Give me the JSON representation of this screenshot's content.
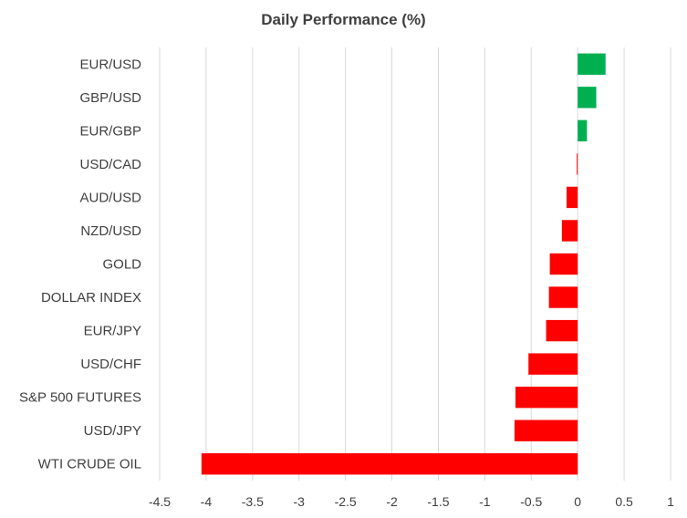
{
  "chart_data": {
    "type": "bar",
    "orientation": "horizontal",
    "title": "Daily Performance (%)",
    "xlabel": "",
    "ylabel": "",
    "categories": [
      "EUR/USD",
      "GBP/USD",
      "EUR/GBP",
      "USD/CAD",
      "AUD/USD",
      "NZD/USD",
      "GOLD",
      "DOLLAR INDEX",
      "EUR/JPY",
      "USD/CHF",
      "S&P 500 FUTURES",
      "USD/JPY",
      "WTI CRUDE OIL"
    ],
    "values": [
      0.3,
      0.2,
      0.1,
      -0.01,
      -0.12,
      -0.17,
      -0.3,
      -0.31,
      -0.34,
      -0.53,
      -0.67,
      -0.68,
      -4.05
    ],
    "xlim": [
      -4.5,
      1
    ],
    "xticks": [
      "-4.5",
      "-4",
      "-3.5",
      "-3",
      "-2.5",
      "-2",
      "-1.5",
      "-1",
      "-0.5",
      "0",
      "0.5",
      "1"
    ],
    "xtick_values": [
      -4.5,
      -4,
      -3.5,
      -3,
      -2.5,
      -2,
      -1.5,
      -1,
      -0.5,
      0,
      0.5,
      1
    ],
    "grid": "vertical",
    "legend": "none",
    "colors": {
      "positive": "#00b050",
      "negative": "#ff0000",
      "grid": "#d9d9d9",
      "text": "#404040"
    }
  }
}
